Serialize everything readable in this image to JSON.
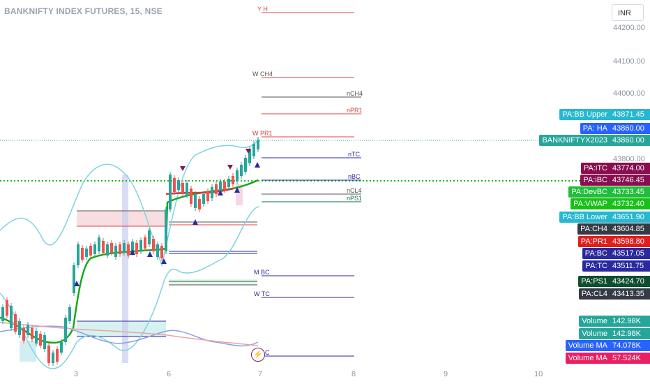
{
  "header": {
    "title": "BANKNIFTY INDEX FUTURES, 15, NSE",
    "currency": "INR"
  },
  "price_axis": [
    "44200.00",
    "44100.00",
    "44000.00",
    "43800.00"
  ],
  "time_axis": [
    "3",
    "6",
    "7",
    "8",
    "9",
    "10"
  ],
  "level_labels": {
    "yh": "Y H",
    "wch4": "W CH4",
    "nch4": "nCH4",
    "npr1": "nPR1",
    "wpr1": "W PR1",
    "ntc": "nTC",
    "nbc": "nBC",
    "ncl4": "nCL4",
    "nps1": "nPS1",
    "mbc": "M BC",
    "wtc": "W TC",
    "c": "C"
  },
  "price_labels": [
    {
      "name": "PA:BB Upper",
      "value": "43871.45",
      "color": "#26b8d0"
    },
    {
      "name": "PA: HA",
      "value": "43860.00",
      "color": "#2962ff"
    },
    {
      "name": "BANKNIFTYX2023",
      "value": "43860.00",
      "color": "#26a69a"
    },
    {
      "name": "PA:iTC",
      "value": "43774.00",
      "color": "#880e4f"
    },
    {
      "name": "PA:iBC",
      "value": "43746.45",
      "color": "#880e4f"
    },
    {
      "name": "PA:DevBC",
      "value": "43733.45",
      "color": "#1fbd3a"
    },
    {
      "name": "PA:VWAP",
      "value": "43732.40",
      "color": "#18c018"
    },
    {
      "name": "PA:BB Lower",
      "value": "43651.90",
      "color": "#26b8d0"
    },
    {
      "name": "PA:CH4",
      "value": "43604.85",
      "color": "#363a45"
    },
    {
      "name": "PA:PR1",
      "value": "43598.80",
      "color": "#e01e1e"
    },
    {
      "name": "PA:BC",
      "value": "43517.05",
      "color": "#2a2a9e"
    },
    {
      "name": "PA:TC",
      "value": "43511.75",
      "color": "#2a2a9e"
    },
    {
      "name": "PA:PS1",
      "value": "43424.70",
      "color": "#0d4d30"
    },
    {
      "name": "PA:CL4",
      "value": "43413.35",
      "color": "#363a45"
    },
    {
      "name": "Volume",
      "value": "142.98K",
      "color": "#26a69a"
    },
    {
      "name": "Volume",
      "value": "142.98K",
      "color": "#26a69a"
    },
    {
      "name": "Volume MA",
      "value": "74.078K",
      "color": "#2962ff"
    },
    {
      "name": "Volume MA",
      "value": "57.524K",
      "color": "#e91e63"
    }
  ]
}
